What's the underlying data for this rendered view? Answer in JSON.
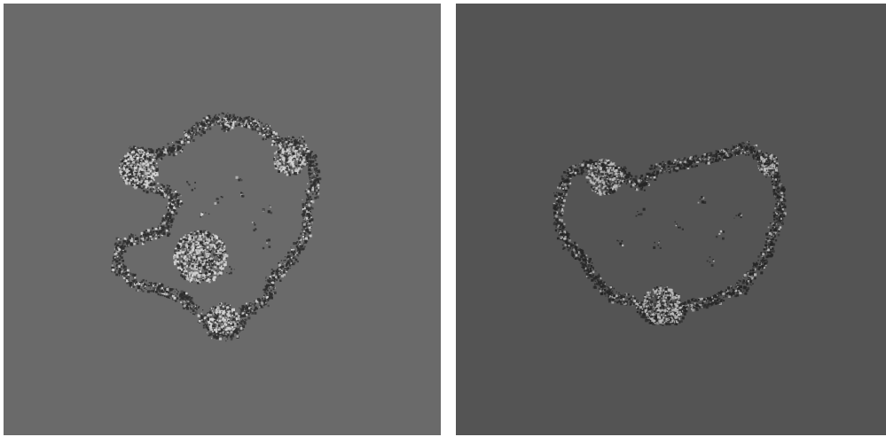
{
  "panels": [
    {
      "id": "left",
      "background": "#6a6a6a",
      "speckle_dark": "#2e2e2e",
      "speckle_light": "#d4d4d4"
    },
    {
      "id": "right",
      "background": "#545454",
      "speckle_dark": "#262626",
      "speckle_light": "#bdbdbd"
    }
  ]
}
